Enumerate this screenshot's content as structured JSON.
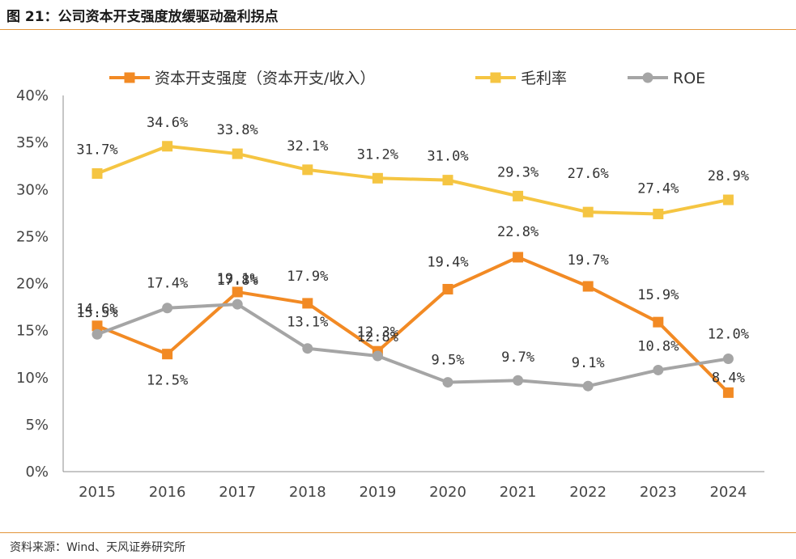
{
  "title": "图 21：公司资本开支强度放缓驱动盈利拐点",
  "source": "资料来源：Wind、天风证券研究所",
  "chart_data": {
    "type": "line",
    "categories": [
      "2015",
      "2016",
      "2017",
      "2018",
      "2019",
      "2020",
      "2021",
      "2022",
      "2023",
      "2024"
    ],
    "y_ticks": [
      "0%",
      "5%",
      "10%",
      "15%",
      "20%",
      "25%",
      "30%",
      "35%",
      "40%"
    ],
    "ylim": [
      0,
      40
    ],
    "grid": false,
    "legend_position": "top",
    "series": [
      {
        "name": "资本开支强度（资本开支/收入）",
        "color": "#f28a24",
        "marker": "square",
        "values": [
          15.5,
          12.5,
          19.1,
          17.9,
          12.8,
          19.4,
          22.8,
          19.7,
          15.9,
          8.4
        ],
        "labels": [
          "15.5%",
          "12.5%",
          "19.1%",
          "17.9%",
          "12.8%",
          "19.4%",
          "22.8%",
          "19.7%",
          "15.9%",
          "8.4%"
        ]
      },
      {
        "name": "毛利率",
        "color": "#f5c542",
        "marker": "square",
        "values": [
          31.7,
          34.6,
          33.8,
          32.1,
          31.2,
          31.0,
          29.3,
          27.6,
          27.4,
          28.9
        ],
        "labels": [
          "31.7%",
          "34.6%",
          "33.8%",
          "32.1%",
          "31.2%",
          "31.0%",
          "29.3%",
          "27.6%",
          "27.4%",
          "28.9%"
        ]
      },
      {
        "name": "ROE",
        "color": "#a5a5a5",
        "marker": "circle",
        "values": [
          14.6,
          17.4,
          17.8,
          13.1,
          12.3,
          9.5,
          9.7,
          9.1,
          10.8,
          12.0
        ],
        "labels": [
          "14.6%",
          "17.4%",
          "17.8%",
          "13.1%",
          "12.3%",
          "9.5%",
          "9.7%",
          "9.1%",
          "10.8%",
          "12.0%"
        ]
      }
    ]
  }
}
